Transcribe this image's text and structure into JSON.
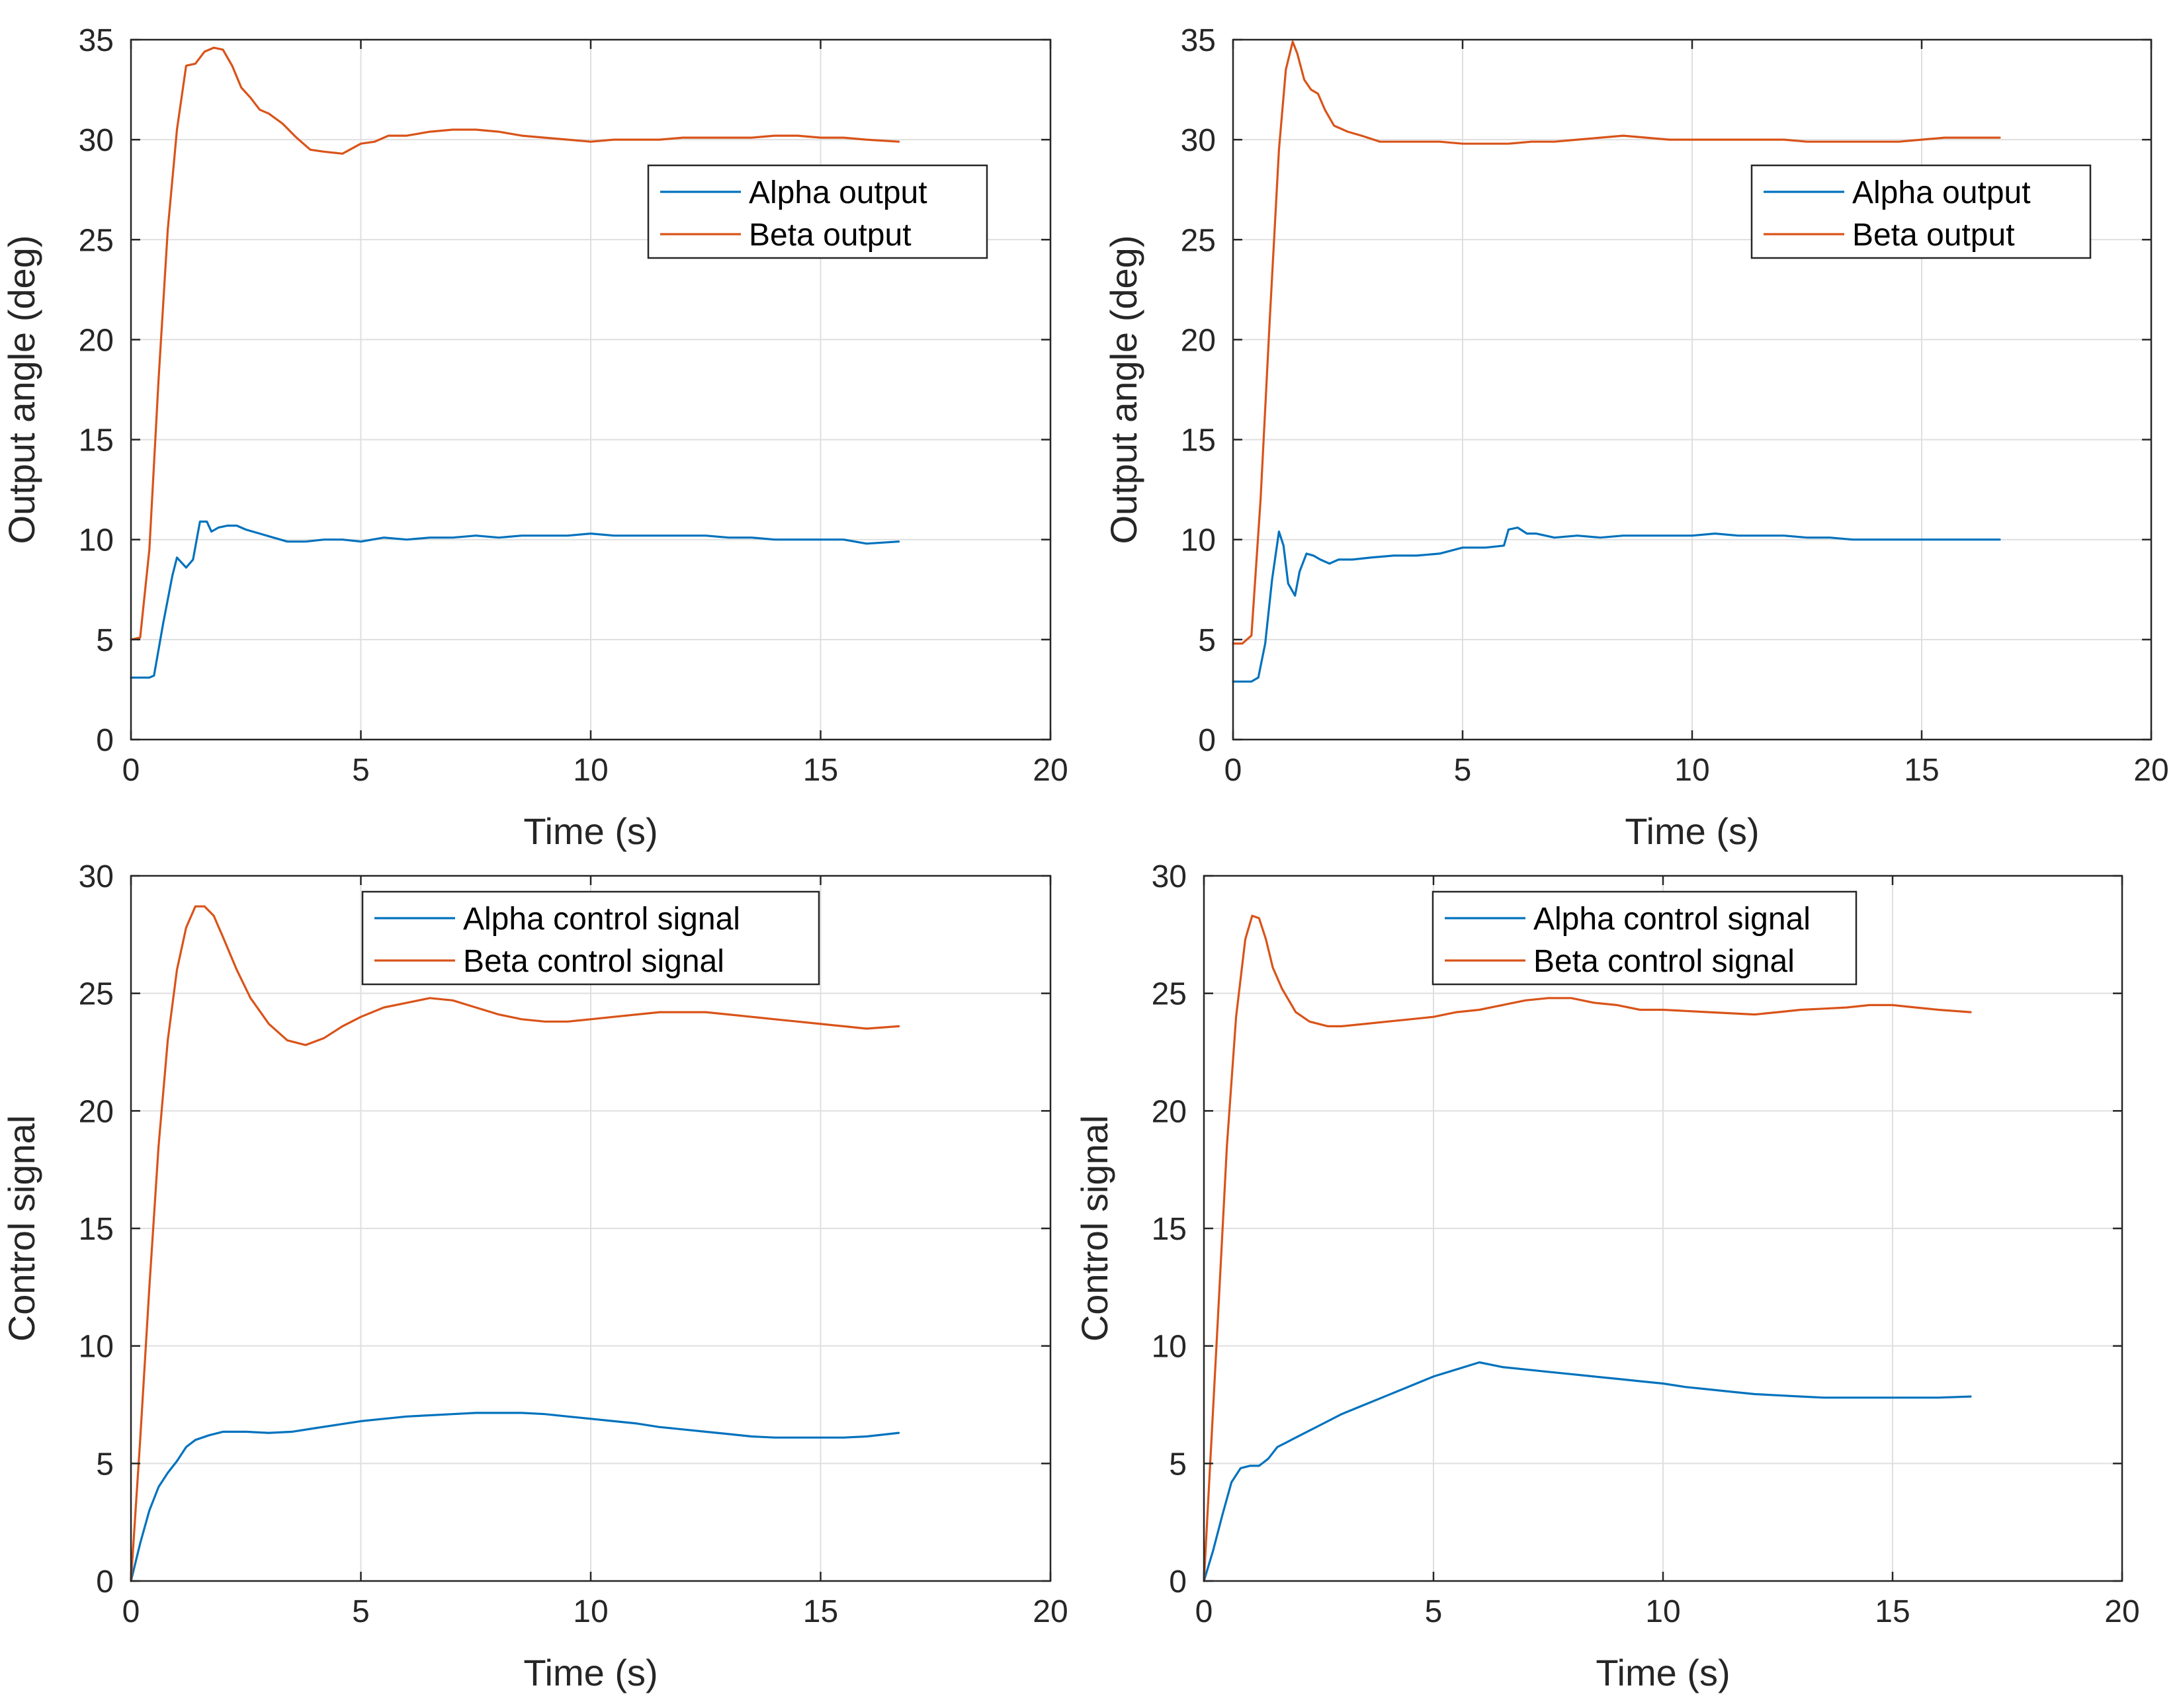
{
  "colors": {
    "alpha": "#0072BD",
    "beta": "#D95319",
    "grid": "#DFDFDF",
    "axis": "#262626"
  },
  "chart_data": [
    {
      "type": "line",
      "xlabel": "Time (s)",
      "ylabel": "Output angle (deg)",
      "xlim": [
        0,
        20
      ],
      "ylim": [
        0,
        35
      ],
      "xticks": [
        0,
        5,
        10,
        15,
        20
      ],
      "yticks": [
        0,
        5,
        10,
        15,
        20,
        25,
        30,
        35
      ],
      "grid": true,
      "legend_position": "top-right",
      "series": [
        {
          "name": "Alpha output",
          "color": "#0072BD",
          "x": [
            0,
            0.2,
            0.4,
            0.5,
            0.7,
            0.9,
            1.0,
            1.2,
            1.35,
            1.5,
            1.65,
            1.75,
            1.9,
            2.1,
            2.3,
            2.5,
            2.8,
            3.1,
            3.4,
            3.8,
            4.2,
            4.6,
            5.0,
            5.5,
            6.0,
            6.5,
            7.0,
            7.5,
            8.0,
            8.5,
            9.0,
            9.5,
            10.0,
            10.5,
            11.0,
            11.5,
            12.0,
            12.5,
            13.0,
            13.5,
            14.0,
            14.5,
            15.0,
            15.5,
            16.0,
            16.7
          ],
          "y": [
            3.1,
            3.1,
            3.1,
            3.2,
            5.8,
            8.2,
            9.1,
            8.6,
            9.0,
            10.9,
            10.9,
            10.4,
            10.6,
            10.7,
            10.7,
            10.5,
            10.3,
            10.1,
            9.9,
            9.9,
            10.0,
            10.0,
            9.9,
            10.1,
            10.0,
            10.1,
            10.1,
            10.2,
            10.1,
            10.2,
            10.2,
            10.2,
            10.3,
            10.2,
            10.2,
            10.2,
            10.2,
            10.2,
            10.1,
            10.1,
            10.0,
            10.0,
            10.0,
            10.0,
            9.8,
            9.9
          ]
        },
        {
          "name": "Beta output",
          "color": "#D95319",
          "x": [
            0,
            0.2,
            0.4,
            0.6,
            0.8,
            1.0,
            1.2,
            1.4,
            1.6,
            1.8,
            2.0,
            2.2,
            2.4,
            2.6,
            2.8,
            3.0,
            3.3,
            3.6,
            3.9,
            4.2,
            4.6,
            5.0,
            5.3,
            5.6,
            6.0,
            6.5,
            7.0,
            7.5,
            8.0,
            8.5,
            9.0,
            9.5,
            10.0,
            10.5,
            11.0,
            11.5,
            12.0,
            12.5,
            13.0,
            13.5,
            14.0,
            14.5,
            15.0,
            15.5,
            16.0,
            16.7
          ],
          "y": [
            5.0,
            5.1,
            9.5,
            18.0,
            25.5,
            30.5,
            33.7,
            33.8,
            34.4,
            34.6,
            34.5,
            33.7,
            32.6,
            32.1,
            31.5,
            31.3,
            30.8,
            30.1,
            29.5,
            29.4,
            29.3,
            29.8,
            29.9,
            30.2,
            30.2,
            30.4,
            30.5,
            30.5,
            30.4,
            30.2,
            30.1,
            30.0,
            29.9,
            30.0,
            30.0,
            30.0,
            30.1,
            30.1,
            30.1,
            30.1,
            30.2,
            30.2,
            30.1,
            30.1,
            30.0,
            29.9
          ]
        }
      ]
    },
    {
      "type": "line",
      "xlabel": "Time (s)",
      "ylabel": "Output angle (deg)",
      "xlim": [
        0,
        20
      ],
      "ylim": [
        0,
        35
      ],
      "xticks": [
        0,
        5,
        10,
        15,
        20
      ],
      "yticks": [
        0,
        5,
        10,
        15,
        20,
        25,
        30,
        35
      ],
      "grid": true,
      "legend_position": "top-right",
      "series": [
        {
          "name": "Alpha output",
          "color": "#0072BD",
          "x": [
            0,
            0.2,
            0.4,
            0.55,
            0.7,
            0.85,
            1.0,
            1.1,
            1.2,
            1.35,
            1.45,
            1.6,
            1.75,
            1.9,
            2.1,
            2.3,
            2.6,
            3.0,
            3.5,
            4.0,
            4.5,
            5.0,
            5.5,
            5.9,
            6.0,
            6.2,
            6.4,
            6.6,
            7.0,
            7.5,
            8.0,
            8.5,
            9.0,
            9.5,
            10.0,
            10.5,
            11.0,
            11.5,
            12.0,
            12.5,
            13.0,
            13.5,
            14.0,
            14.5,
            15.0,
            15.5,
            16.0,
            16.7
          ],
          "y": [
            2.9,
            2.9,
            2.9,
            3.1,
            4.8,
            8.0,
            10.4,
            9.7,
            7.8,
            7.2,
            8.4,
            9.3,
            9.2,
            9.0,
            8.8,
            9.0,
            9.0,
            9.1,
            9.2,
            9.2,
            9.3,
            9.6,
            9.6,
            9.7,
            10.5,
            10.6,
            10.3,
            10.3,
            10.1,
            10.2,
            10.1,
            10.2,
            10.2,
            10.2,
            10.2,
            10.3,
            10.2,
            10.2,
            10.2,
            10.1,
            10.1,
            10.0,
            10.0,
            10.0,
            10.0,
            10.0,
            10.0,
            10.0
          ]
        },
        {
          "name": "Beta output",
          "color": "#D95319",
          "x": [
            0,
            0.2,
            0.4,
            0.6,
            0.8,
            1.0,
            1.15,
            1.3,
            1.4,
            1.55,
            1.7,
            1.85,
            2.0,
            2.2,
            2.5,
            2.8,
            3.2,
            3.6,
            4.0,
            4.5,
            5.0,
            5.5,
            6.0,
            6.5,
            7.0,
            7.5,
            8.0,
            8.5,
            9.0,
            9.5,
            10.0,
            10.5,
            11.0,
            11.5,
            12.0,
            12.5,
            13.0,
            13.5,
            14.0,
            14.5,
            15.0,
            15.5,
            16.0,
            16.7
          ],
          "y": [
            4.8,
            4.8,
            5.2,
            12.0,
            21.0,
            29.5,
            33.5,
            34.9,
            34.3,
            33.0,
            32.5,
            32.3,
            31.5,
            30.7,
            30.4,
            30.2,
            29.9,
            29.9,
            29.9,
            29.9,
            29.8,
            29.8,
            29.8,
            29.9,
            29.9,
            30.0,
            30.1,
            30.2,
            30.1,
            30.0,
            30.0,
            30.0,
            30.0,
            30.0,
            30.0,
            29.9,
            29.9,
            29.9,
            29.9,
            29.9,
            30.0,
            30.1,
            30.1,
            30.1
          ]
        }
      ]
    },
    {
      "type": "line",
      "xlabel": "Time (s)",
      "ylabel": "Control signal",
      "xlim": [
        0,
        20
      ],
      "ylim": [
        0,
        30
      ],
      "xticks": [
        0,
        5,
        10,
        15,
        20
      ],
      "yticks": [
        0,
        5,
        10,
        15,
        20,
        25,
        30
      ],
      "grid": true,
      "legend_position": "top-center",
      "series": [
        {
          "name": "Alpha control signal",
          "color": "#0072BD",
          "x": [
            0,
            0.2,
            0.4,
            0.6,
            0.8,
            1.0,
            1.2,
            1.4,
            1.7,
            2.0,
            2.5,
            3.0,
            3.5,
            4.0,
            4.5,
            5.0,
            5.5,
            6.0,
            6.5,
            7.0,
            7.5,
            8.0,
            8.5,
            9.0,
            9.5,
            10.0,
            10.5,
            11.0,
            11.5,
            12.0,
            12.5,
            13.0,
            13.5,
            14.0,
            14.5,
            15.0,
            15.5,
            16.0,
            16.7
          ],
          "y": [
            0,
            1.6,
            3.0,
            4.0,
            4.6,
            5.1,
            5.7,
            6.0,
            6.2,
            6.35,
            6.35,
            6.3,
            6.35,
            6.5,
            6.65,
            6.8,
            6.9,
            7.0,
            7.05,
            7.1,
            7.15,
            7.15,
            7.15,
            7.1,
            7.0,
            6.9,
            6.8,
            6.7,
            6.55,
            6.45,
            6.35,
            6.25,
            6.15,
            6.1,
            6.1,
            6.1,
            6.1,
            6.15,
            6.3
          ]
        },
        {
          "name": "Beta control signal",
          "color": "#D95319",
          "x": [
            0,
            0.2,
            0.4,
            0.6,
            0.8,
            1.0,
            1.2,
            1.4,
            1.6,
            1.8,
            2.0,
            2.3,
            2.6,
            3.0,
            3.4,
            3.8,
            4.2,
            4.6,
            5.0,
            5.5,
            6.0,
            6.5,
            7.0,
            7.5,
            8.0,
            8.5,
            9.0,
            9.5,
            10.0,
            10.5,
            11.0,
            11.5,
            12.0,
            12.5,
            13.0,
            13.5,
            14.0,
            14.5,
            15.0,
            15.5,
            16.0,
            16.7
          ],
          "y": [
            0,
            6.0,
            12.5,
            18.5,
            23.0,
            26.0,
            27.8,
            28.7,
            28.7,
            28.3,
            27.4,
            26.0,
            24.8,
            23.7,
            23.0,
            22.8,
            23.1,
            23.6,
            24.0,
            24.4,
            24.6,
            24.8,
            24.7,
            24.4,
            24.1,
            23.9,
            23.8,
            23.8,
            23.9,
            24.0,
            24.1,
            24.2,
            24.2,
            24.2,
            24.1,
            24.0,
            23.9,
            23.8,
            23.7,
            23.6,
            23.5,
            23.6
          ]
        }
      ]
    },
    {
      "type": "line",
      "xlabel": "Time (s)",
      "ylabel": "Control signal",
      "xlim": [
        0,
        20
      ],
      "ylim": [
        0,
        30
      ],
      "xticks": [
        0,
        5,
        10,
        15,
        20
      ],
      "yticks": [
        0,
        5,
        10,
        15,
        20,
        25,
        30
      ],
      "grid": true,
      "legend_position": "top-center",
      "series": [
        {
          "name": "Alpha control signal",
          "color": "#0072BD",
          "x": [
            0,
            0.2,
            0.4,
            0.6,
            0.8,
            1.0,
            1.2,
            1.4,
            1.6,
            1.8,
            2.0,
            2.5,
            3.0,
            3.5,
            4.0,
            4.5,
            5.0,
            5.5,
            6.0,
            6.5,
            7.0,
            7.5,
            8.0,
            8.5,
            9.0,
            9.5,
            10.0,
            10.5,
            11.0,
            11.5,
            12.0,
            12.5,
            13.0,
            13.5,
            14.0,
            14.5,
            15.0,
            15.5,
            16.0,
            16.7
          ],
          "y": [
            0,
            1.3,
            2.8,
            4.2,
            4.8,
            4.9,
            4.9,
            5.2,
            5.7,
            5.9,
            6.1,
            6.6,
            7.1,
            7.5,
            7.9,
            8.3,
            8.7,
            9.0,
            9.3,
            9.1,
            9.0,
            8.9,
            8.8,
            8.7,
            8.6,
            8.5,
            8.4,
            8.25,
            8.15,
            8.05,
            7.95,
            7.9,
            7.85,
            7.8,
            7.8,
            7.8,
            7.8,
            7.8,
            7.8,
            7.85
          ]
        },
        {
          "name": "Beta control signal",
          "color": "#D95319",
          "x": [
            0,
            0.15,
            0.3,
            0.5,
            0.7,
            0.9,
            1.05,
            1.2,
            1.35,
            1.5,
            1.7,
            2.0,
            2.3,
            2.7,
            3.0,
            3.5,
            4.0,
            4.5,
            5.0,
            5.5,
            6.0,
            6.5,
            7.0,
            7.5,
            8.0,
            8.5,
            9.0,
            9.5,
            10.0,
            10.5,
            11.0,
            11.5,
            12.0,
            12.5,
            13.0,
            13.5,
            14.0,
            14.5,
            15.0,
            15.5,
            16.0,
            16.7
          ],
          "y": [
            0,
            5.5,
            11.0,
            18.5,
            24.0,
            27.3,
            28.3,
            28.2,
            27.3,
            26.1,
            25.2,
            24.2,
            23.8,
            23.6,
            23.6,
            23.7,
            23.8,
            23.9,
            24.0,
            24.2,
            24.3,
            24.5,
            24.7,
            24.8,
            24.8,
            24.6,
            24.5,
            24.3,
            24.3,
            24.25,
            24.2,
            24.15,
            24.1,
            24.2,
            24.3,
            24.35,
            24.4,
            24.5,
            24.5,
            24.4,
            24.3,
            24.2
          ]
        }
      ]
    }
  ]
}
